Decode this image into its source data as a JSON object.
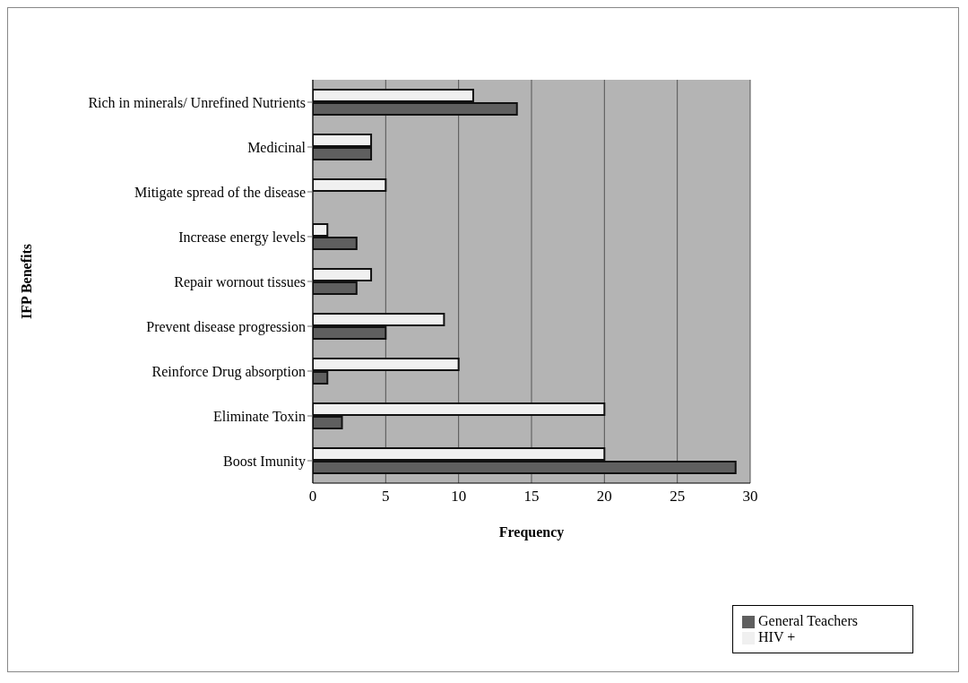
{
  "chart_data": {
    "type": "bar",
    "orientation": "horizontal",
    "xlabel": "Frequency",
    "ylabel": "IFP Benefits",
    "categories": [
      "Rich in minerals/ Unrefined Nutrients",
      "Medicinal",
      "Mitigate spread of the disease",
      "Increase energy levels",
      "Repair wornout tissues",
      "Prevent disease progression",
      "Reinforce Drug absorption",
      "Eliminate Toxin",
      "Boost Imunity"
    ],
    "series": [
      {
        "name": "HIV +",
        "color": "#f0f0f0",
        "values": [
          11,
          4,
          5,
          1,
          4,
          9,
          10,
          20,
          20
        ]
      },
      {
        "name": "General Teachers",
        "color": "#5f5f5f",
        "values": [
          14,
          4,
          0,
          3,
          3,
          5,
          1,
          2,
          29
        ]
      }
    ],
    "xlim": [
      0,
      30
    ],
    "xticks": [
      0,
      5,
      10,
      15,
      20,
      25,
      30
    ],
    "grid": "x",
    "legend": "bottom right"
  }
}
